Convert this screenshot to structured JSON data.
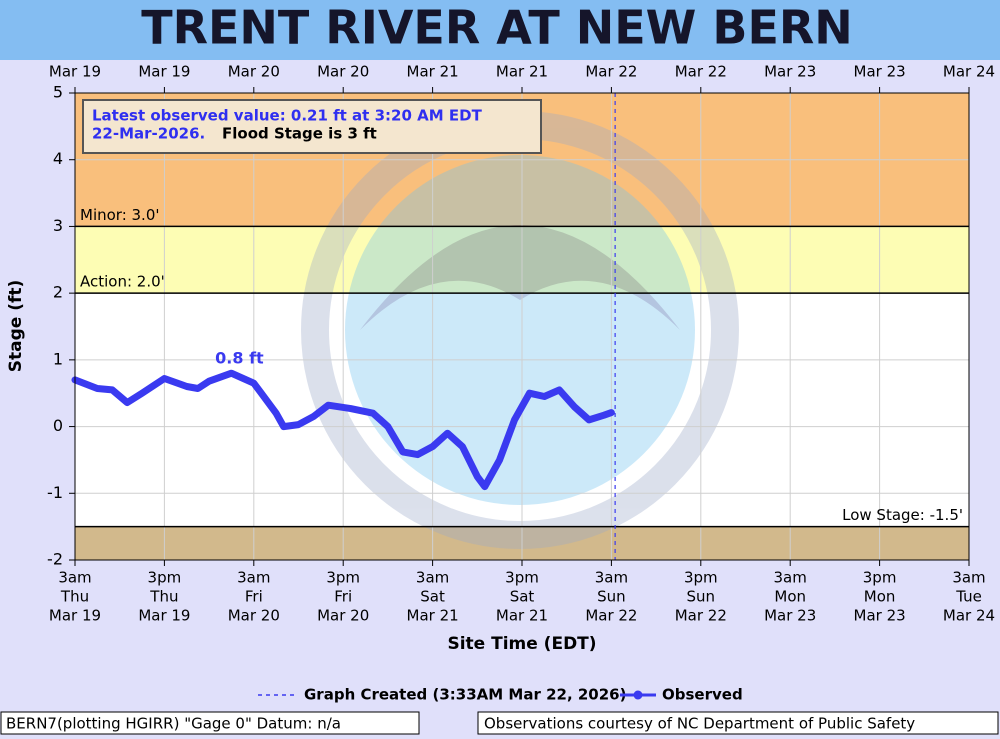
{
  "chart_data": {
    "type": "line",
    "title": "TRENT RIVER AT NEW BERN",
    "y_label": "Stage (ft)",
    "x_label": "Site Time (EDT)",
    "xlim": [
      0,
      120
    ],
    "ylim": [
      -2,
      5
    ],
    "yticks": [
      -2,
      -1,
      0,
      1,
      2,
      3,
      4,
      5
    ],
    "grid": true,
    "xticks": [
      {
        "value": 0,
        "label": [
          "3am",
          "Thu",
          "Mar 19"
        ]
      },
      {
        "value": 12,
        "label": [
          "3pm",
          "Thu",
          "Mar 19"
        ]
      },
      {
        "value": 24,
        "label": [
          "3am",
          "Fri",
          "Mar 20"
        ]
      },
      {
        "value": 36,
        "label": [
          "3pm",
          "Fri",
          "Mar 20"
        ]
      },
      {
        "value": 48,
        "label": [
          "3am",
          "Sat",
          "Mar 21"
        ]
      },
      {
        "value": 60,
        "label": [
          "3pm",
          "Sat",
          "Mar 21"
        ]
      },
      {
        "value": 72,
        "label": [
          "3am",
          "Sun",
          "Mar 22"
        ]
      },
      {
        "value": 84,
        "label": [
          "3pm",
          "Sun",
          "Mar 22"
        ]
      },
      {
        "value": 96,
        "label": [
          "3am",
          "Mon",
          "Mar 23"
        ]
      },
      {
        "value": 108,
        "label": [
          "3pm",
          "Mon",
          "Mar 23"
        ]
      },
      {
        "value": 120,
        "label": [
          "3am",
          "Tue",
          "Mar 24"
        ]
      }
    ],
    "x2ticks": [
      {
        "value": 0,
        "label": "Mar 19"
      },
      {
        "value": 12,
        "label": "Mar 19"
      },
      {
        "value": 24,
        "label": "Mar 20"
      },
      {
        "value": 36,
        "label": "Mar 20"
      },
      {
        "value": 48,
        "label": "Mar 21"
      },
      {
        "value": 60,
        "label": "Mar 21"
      },
      {
        "value": 72,
        "label": "Mar 22"
      },
      {
        "value": 84,
        "label": "Mar 22"
      },
      {
        "value": 96,
        "label": "Mar 23"
      },
      {
        "value": 108,
        "label": "Mar 23"
      },
      {
        "value": 120,
        "label": "Mar 24"
      }
    ],
    "thresholds": [
      {
        "label": "Minor: 3.0'",
        "value": 3,
        "color": "#f9bf7c"
      },
      {
        "label": "Action: 2.0'",
        "value": 2,
        "color": "#fdfdb4"
      },
      {
        "label": "Low Stage: -1.5'",
        "value": -1.5,
        "color": "#d2b98c"
      }
    ],
    "series": [
      {
        "name": "Observed",
        "color": "#3a3af0",
        "x": [
          0,
          3,
          5,
          7,
          9,
          12,
          15,
          16.5,
          18,
          21,
          24,
          25,
          27,
          28,
          30,
          32,
          34,
          37,
          40,
          42,
          44,
          46,
          48,
          50,
          52,
          54,
          55,
          57,
          59,
          61,
          63,
          65,
          67,
          69,
          71,
          72
        ],
        "values": [
          0.7,
          0.57,
          0.55,
          0.36,
          0.5,
          0.72,
          0.6,
          0.57,
          0.68,
          0.8,
          0.65,
          0.5,
          0.2,
          0.0,
          0.03,
          0.15,
          0.32,
          0.27,
          0.2,
          0.0,
          -0.38,
          -0.42,
          -0.3,
          -0.1,
          -0.3,
          -0.75,
          -0.9,
          -0.5,
          0.1,
          0.5,
          0.45,
          0.55,
          0.3,
          0.1,
          0.17,
          0.21
        ]
      }
    ],
    "peak_label": {
      "text": "0.8 ft",
      "x": 21,
      "value": 0.8
    },
    "graph_created": {
      "label": "Graph Created (3:33AM Mar 22, 2026)",
      "x": 72.5
    },
    "info": {
      "line1": "Latest observed value: 0.21 ft at 3:20 AM EDT",
      "date": "22-Mar-2026.",
      "flood": "Flood Stage is 3 ft"
    },
    "footer_left": "BERN7(plotting HGIRR) \"Gage 0\" Datum: n/a",
    "footer_right": "Observations courtesy of NC Department of Public Safety"
  }
}
